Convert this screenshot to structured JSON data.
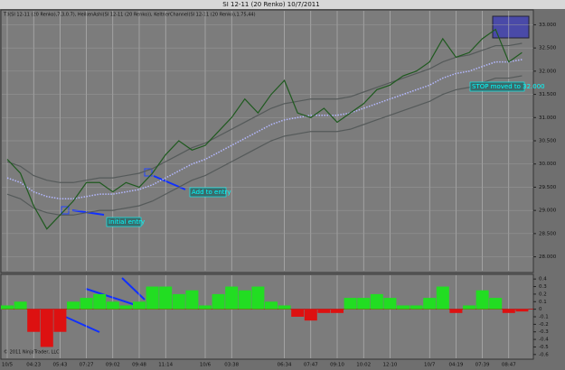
{
  "title": "SI 12-11 (20 Renko)  10/7/2011",
  "indicator_label": "T3(SI 12-11 (20 Renko),7,3,0.7), HeikenAshi(SI 12-11 (20 Renko)), KeltnerChannel(SI 12-11 (20 Renko),1.75,44)",
  "copyright": "© 2011 NinjaTrader, LLC",
  "annotations": [
    {
      "text": "Initial entry"
    },
    {
      "text": "Add to entry"
    },
    {
      "text": "STOP moved to 32.000"
    }
  ],
  "chart_data": [
    {
      "type": "line",
      "categories": [
        "10/5",
        null,
        "04:23",
        null,
        "05:43",
        null,
        "07:27",
        null,
        "09:02",
        null,
        "09:48",
        null,
        "11:14",
        null,
        null,
        "10/6",
        null,
        "03:38",
        null,
        null,
        null,
        "06:34",
        null,
        "07:47",
        null,
        "09:10",
        null,
        "10:02",
        null,
        "12:10",
        null,
        null,
        "10/7",
        null,
        "04:19",
        null,
        "07:39",
        null,
        "08:47",
        null
      ],
      "ylim": [
        27.7,
        33.3
      ],
      "yticks": [
        {
          "value": 28,
          "label": "28.000"
        },
        {
          "value": 28.5,
          "label": "28.500"
        },
        {
          "value": 29,
          "label": "29.000"
        },
        {
          "value": 29.5,
          "label": "29.500"
        },
        {
          "value": 30,
          "label": "30.000"
        },
        {
          "value": 30.5,
          "label": "30.500"
        },
        {
          "value": 31,
          "label": "31.000"
        },
        {
          "value": 31.5,
          "label": "31.500"
        },
        {
          "value": 32,
          "label": "32.000"
        },
        {
          "value": 32.5,
          "label": "32.500"
        },
        {
          "value": 33,
          "label": "33.000"
        }
      ],
      "grid": true,
      "series": [
        {
          "color": "#555a5a",
          "dash": false,
          "values": [
            30.05,
            29.95,
            29.75,
            29.65,
            29.6,
            29.6,
            29.65,
            29.7,
            29.7,
            29.75,
            29.8,
            29.9,
            30.05,
            30.2,
            30.35,
            30.45,
            30.6,
            30.75,
            30.9,
            31.05,
            31.2,
            31.3,
            31.35,
            31.4,
            31.4,
            31.4,
            31.45,
            31.55,
            31.65,
            31.75,
            31.85,
            31.95,
            32.05,
            32.2,
            32.3,
            32.35,
            32.45,
            32.55,
            32.55,
            32.6
          ]
        },
        {
          "color": "#555a5a",
          "dash": false,
          "values": [
            29.35,
            29.25,
            29.05,
            28.95,
            28.9,
            28.9,
            28.95,
            29.0,
            29.0,
            29.05,
            29.1,
            29.2,
            29.35,
            29.5,
            29.65,
            29.75,
            29.9,
            30.05,
            30.2,
            30.35,
            30.5,
            30.6,
            30.65,
            30.7,
            30.7,
            30.7,
            30.75,
            30.85,
            30.95,
            31.05,
            31.15,
            31.25,
            31.35,
            31.5,
            31.6,
            31.65,
            31.75,
            31.85,
            31.85,
            31.9
          ]
        },
        {
          "color": "#b4b8ff",
          "dash": true,
          "values": [
            29.7,
            29.6,
            29.4,
            29.3,
            29.25,
            29.25,
            29.3,
            29.35,
            29.35,
            29.4,
            29.45,
            29.55,
            29.7,
            29.85,
            30.0,
            30.1,
            30.25,
            30.4,
            30.55,
            30.7,
            30.85,
            30.95,
            31.0,
            31.05,
            31.05,
            31.05,
            31.1,
            31.2,
            31.3,
            31.4,
            31.5,
            31.6,
            31.7,
            31.85,
            31.95,
            32.0,
            32.1,
            32.2,
            32.2,
            32.25
          ]
        },
        {
          "color": "#1f5a1f",
          "dash": false,
          "values": [
            30.1,
            29.8,
            29.1,
            28.6,
            28.9,
            29.2,
            29.6,
            29.6,
            29.4,
            29.6,
            29.5,
            29.8,
            30.2,
            30.5,
            30.3,
            30.4,
            30.7,
            31.0,
            31.4,
            31.1,
            31.5,
            31.8,
            31.1,
            31.0,
            31.2,
            30.9,
            31.1,
            31.3,
            31.6,
            31.7,
            31.9,
            32.0,
            32.2,
            32.7,
            32.3,
            32.4,
            32.7,
            32.9,
            32.2,
            32.4
          ]
        }
      ]
    },
    {
      "type": "bar",
      "ylim": [
        -0.65,
        0.45
      ],
      "yticks": [
        0.4,
        0.3,
        0.2,
        0.1,
        0,
        -0.1,
        -0.2,
        -0.3,
        -0.4,
        -0.5,
        -0.6
      ],
      "positive_color": "#22dd22",
      "negative_color": "#dd1111",
      "values": [
        0.05,
        0.1,
        -0.3,
        -0.5,
        -0.3,
        0.1,
        0.15,
        0.2,
        0.1,
        0.05,
        0.1,
        0.3,
        0.3,
        0.2,
        0.25,
        0.05,
        0.2,
        0.3,
        0.25,
        0.3,
        0.1,
        0.05,
        -0.1,
        -0.15,
        -0.05,
        -0.05,
        0.15,
        0.15,
        0.2,
        0.15,
        0.05,
        0.05,
        0.15,
        0.3,
        -0.05,
        0.05,
        0.25,
        0.15,
        -0.05,
        -0.03
      ]
    }
  ]
}
